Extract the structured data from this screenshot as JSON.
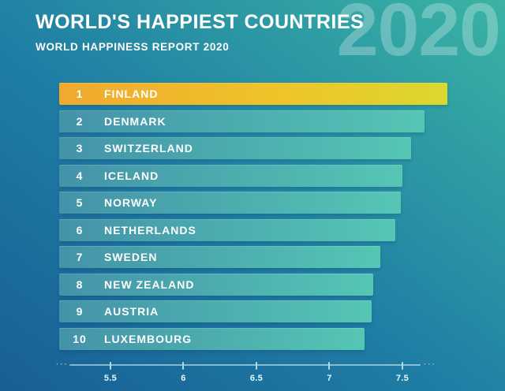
{
  "header": {
    "title": "WORLD'S HAPPIEST COUNTRIES",
    "subtitle": "WORLD HAPPINESS REPORT 2020",
    "watermark": "2020"
  },
  "chart_data": {
    "type": "bar",
    "orientation": "horizontal",
    "title": "WORLD'S HAPPIEST COUNTRIES",
    "subtitle": "WORLD HAPPINESS REPORT 2020",
    "categories": [
      "FINLAND",
      "DENMARK",
      "SWITZERLAND",
      "ICELAND",
      "NORWAY",
      "NETHERLANDS",
      "SWEDEN",
      "NEW ZEALAND",
      "AUSTRIA",
      "LUXEMBOURG"
    ],
    "ranks": [
      "1",
      "2",
      "3",
      "4",
      "5",
      "6",
      "7",
      "8",
      "9",
      "10"
    ],
    "values": [
      7.81,
      7.65,
      7.56,
      7.5,
      7.49,
      7.45,
      7.35,
      7.3,
      7.29,
      7.24
    ],
    "highlight_index": 0,
    "xlabel": "",
    "ylabel": "",
    "axis": {
      "min": 5.149,
      "ticks": [
        5.5,
        6,
        6.5,
        7,
        7.5
      ],
      "tick_labels": [
        "5.5",
        "6",
        "6.5",
        "7",
        "7.5"
      ]
    },
    "grid": false,
    "legend": "none"
  },
  "colors": {
    "bg_dark": "#185f95",
    "bg_mid": "#1f7ea5",
    "bg_teal": "#3ab4a3",
    "bar_teal_left": "#4493a9",
    "bar_teal_right": "#55c6b4",
    "bar_gold_left": "#f0a92d",
    "bar_gold_mid": "#efc32a",
    "bar_gold_right": "#dcd72f",
    "text_white": "#ffffff",
    "tick_color": "#aadde4",
    "tick_label": "#eafafb"
  },
  "axis_dots": "···"
}
